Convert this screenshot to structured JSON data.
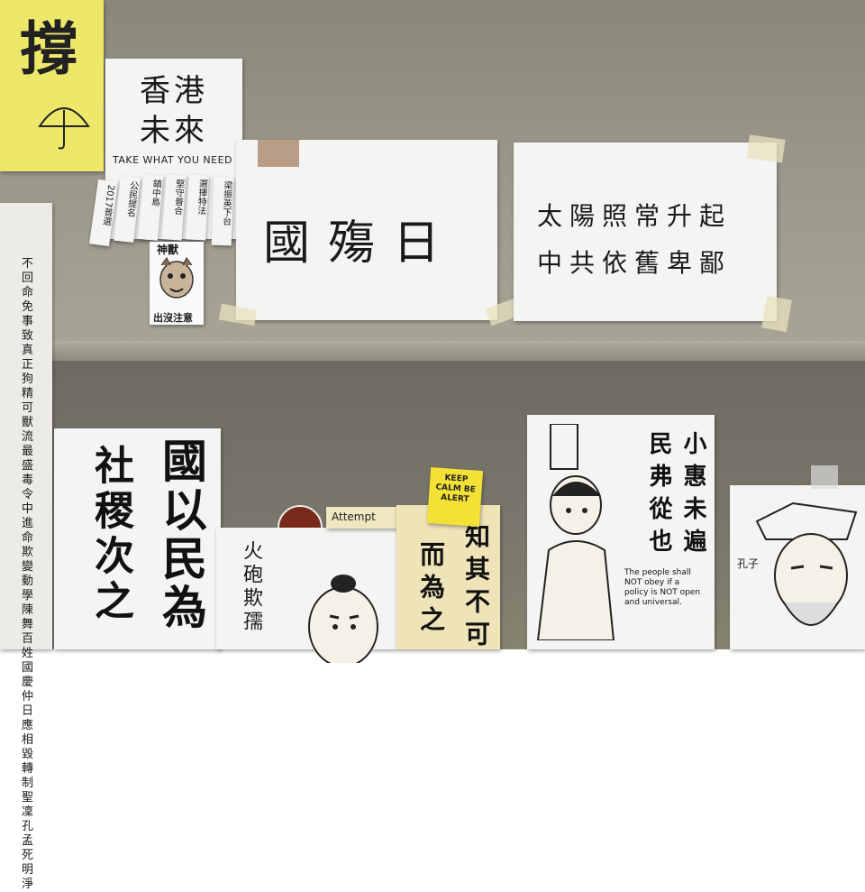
{
  "notice_1": {
    "text": "國殤日"
  },
  "notice_2": {
    "line1": "太陽照常升起",
    "line2": "中共依舊卑鄙"
  },
  "take_sign": {
    "title_right": "香港",
    "title_right2": "未來",
    "tagline": "TAKE WHAT YOU NEED",
    "strips": [
      "2017普選",
      "公民提名",
      "鎮中島",
      "堅守普合",
      "選擇特法",
      "梁振英下台"
    ]
  },
  "sticker": {
    "top": "神獸",
    "bottom": "出沒注意"
  },
  "calligraphy_left": {
    "col1": "社稷次之",
    "col2": "國以民為"
  },
  "cartoon_small": {
    "col1": "火砲欺孺",
    "header": "Attempt"
  },
  "yellow_note": {
    "text": "KEEP CALM BE ALERT"
  },
  "cartoon_middle": {
    "col1": "知其不可",
    "col2": "而為之"
  },
  "cartoon_right": {
    "col1": "小惠未遍",
    "col2": "民弗從也",
    "caption": "The people shall NOT obey if a policy is NOT open and universal."
  },
  "cartoon_far_right": {
    "label": "孔子"
  },
  "left_column_text": "不回命免事致真正狗精可獸流最盛毒令中進命欺變動學陳舞百姓國慶仲日應相毀轉制聖凜孔孟死明淨"
}
